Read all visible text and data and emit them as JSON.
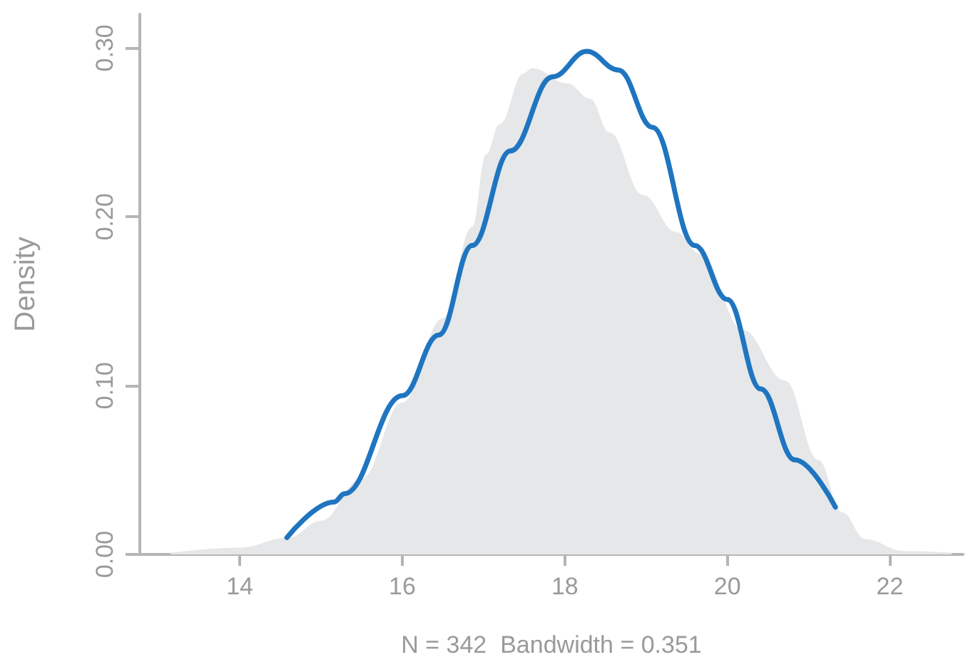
{
  "chart_data": {
    "type": "line",
    "xlabel": "N = 342  Bandwidth = 0.351",
    "ylabel": "Density",
    "xlim": [
      12.77,
      22.9
    ],
    "xticks": [
      14,
      16,
      18,
      20,
      22
    ],
    "ylim": [
      0,
      0.32
    ],
    "yticks": [
      {
        "value": 0,
        "label": "0.00"
      },
      {
        "value": 0.1,
        "label": "0.10"
      },
      {
        "value": 0.2,
        "label": "0.20"
      },
      {
        "value": 0.3,
        "label": "0.30"
      }
    ],
    "grid": false,
    "marker": "none",
    "series": [
      {
        "type": "area",
        "color": "#e6e7e9",
        "x": [
          13.15,
          14.0,
          14.6,
          15.0,
          15.5,
          16.0,
          16.5,
          16.86,
          17.03,
          17.2,
          17.49,
          17.6,
          18.03,
          18.31,
          18.55,
          18.96,
          19.37,
          19.67,
          20.19,
          20.71,
          21.12,
          21.41,
          21.7,
          22.17,
          22.76
        ],
        "values": [
          0.001,
          0.004,
          0.01,
          0.02,
          0.045,
          0.09,
          0.14,
          0.194,
          0.237,
          0.255,
          0.285,
          0.288,
          0.279,
          0.27,
          0.25,
          0.213,
          0.191,
          0.178,
          0.133,
          0.103,
          0.056,
          0.025,
          0.009,
          0.002,
          0.001
        ]
      },
      {
        "type": "line",
        "color": "#1f75c0",
        "x": [
          14.58,
          15.16,
          15.29,
          16.0,
          16.45,
          16.86,
          17.33,
          17.85,
          18.27,
          18.66,
          19.08,
          19.6,
          20.0,
          20.41,
          20.83,
          21.33
        ],
        "values": [
          0.01,
          0.031,
          0.036,
          0.094,
          0.13,
          0.183,
          0.239,
          0.283,
          0.298,
          0.287,
          0.253,
          0.183,
          0.151,
          0.098,
          0.056,
          0.028
        ]
      }
    ]
  }
}
